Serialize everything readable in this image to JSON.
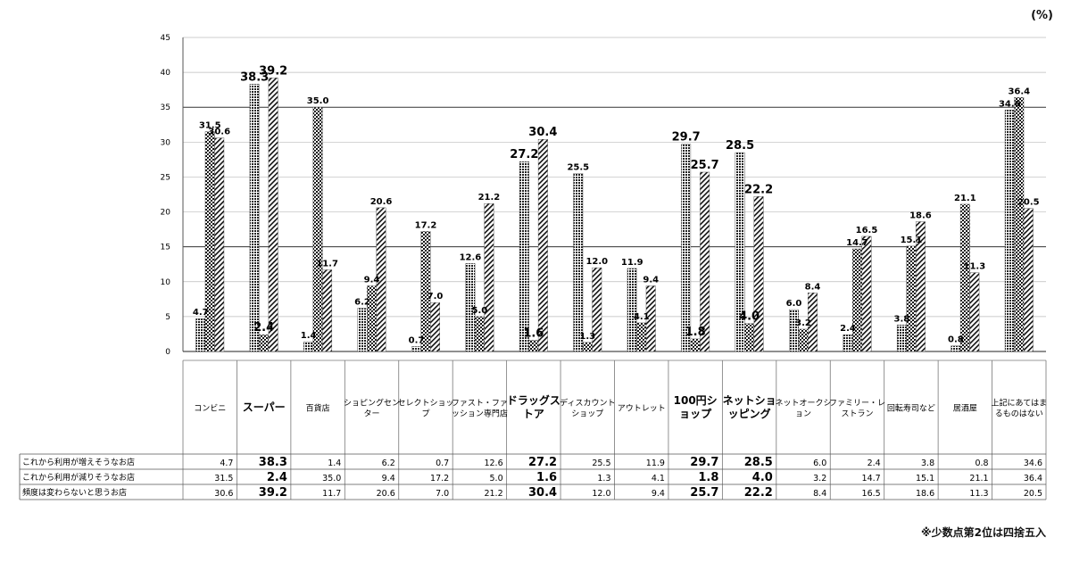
{
  "unit_label": "(%)",
  "footnote": "※少数点第2位は四捨五入",
  "chart_data": {
    "type": "bar",
    "ylim": [
      0,
      45
    ],
    "yticks": [
      0,
      5,
      10,
      15,
      20,
      25,
      30,
      35,
      40,
      45
    ],
    "grid": true,
    "categories": [
      {
        "label": "コンビニ",
        "bold": false
      },
      {
        "label": "スーパー",
        "bold": true
      },
      {
        "label": "百貨店",
        "bold": false
      },
      {
        "label": "ショピングセンター",
        "bold": false
      },
      {
        "label": "セレクトショップ",
        "bold": false
      },
      {
        "label": "ファスト・ファッション専門店",
        "bold": false
      },
      {
        "label": "ドラッグストア",
        "bold": true
      },
      {
        "label": "ディスカウントショップ",
        "bold": false
      },
      {
        "label": "アウトレット",
        "bold": false
      },
      {
        "label": "100円ショップ",
        "bold": true
      },
      {
        "label": "ネットショッピング",
        "bold": true
      },
      {
        "label": "ネットオークション",
        "bold": false
      },
      {
        "label": "ファミリー・レストラン",
        "bold": false
      },
      {
        "label": "回転寿司など",
        "bold": false
      },
      {
        "label": "居酒屋",
        "bold": false
      },
      {
        "label": "上記にあてはまるものはない",
        "bold": false
      }
    ],
    "series": [
      {
        "name": "これから利用が増えそうなお店",
        "pattern": "dots",
        "values": [
          4.7,
          38.3,
          1.4,
          6.2,
          0.7,
          12.6,
          27.2,
          25.5,
          11.9,
          29.7,
          28.5,
          6.0,
          2.4,
          3.8,
          0.8,
          34.6
        ]
      },
      {
        "name": "これから利用が減りそうなお店",
        "pattern": "checker",
        "values": [
          31.5,
          2.4,
          35.0,
          9.4,
          17.2,
          5.0,
          1.6,
          1.3,
          4.1,
          1.8,
          4.0,
          3.2,
          14.7,
          15.1,
          21.1,
          36.4
        ]
      },
      {
        "name": "頻度は変わらないと思うお店",
        "pattern": "diagonal",
        "values": [
          30.6,
          39.2,
          11.7,
          20.6,
          7.0,
          21.2,
          30.4,
          12.0,
          9.4,
          25.7,
          22.2,
          8.4,
          16.5,
          18.6,
          11.3,
          20.5
        ]
      }
    ]
  }
}
